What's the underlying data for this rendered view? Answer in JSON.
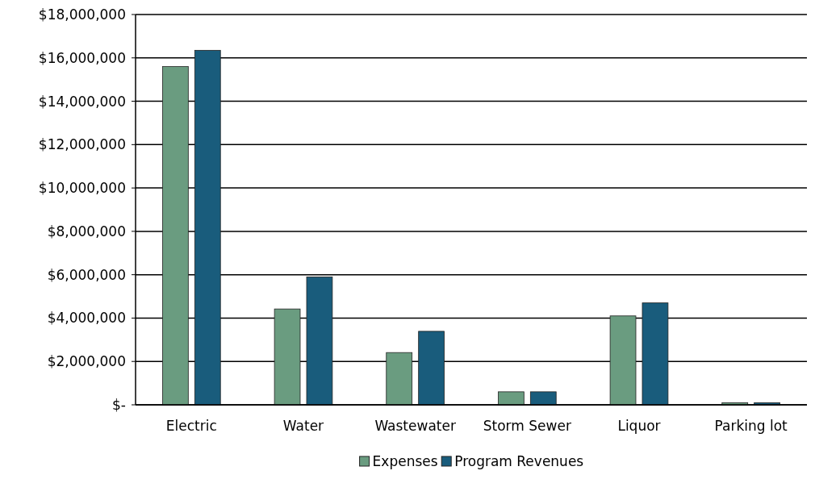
{
  "chart_data": {
    "type": "bar",
    "categories": [
      "Electric",
      "Water",
      "Wastewater",
      "Storm Sewer",
      "Liquor",
      "Parking lot"
    ],
    "series": [
      {
        "name": "Expenses",
        "color": "#6a9c80",
        "values": [
          15600000,
          4420000,
          2410000,
          600000,
          4100000,
          100000
        ]
      },
      {
        "name": "Program Revenues",
        "color": "#195c7c",
        "values": [
          16350000,
          5900000,
          3390000,
          600000,
          4700000,
          100000
        ]
      }
    ],
    "ylim": [
      0,
      18000000
    ],
    "yticks": [
      {
        "value": 0,
        "label": "$-"
      },
      {
        "value": 2000000,
        "label": "$2,000,000"
      },
      {
        "value": 4000000,
        "label": "$4,000,000"
      },
      {
        "value": 6000000,
        "label": "$6,000,000"
      },
      {
        "value": 8000000,
        "label": "$8,000,000"
      },
      {
        "value": 10000000,
        "label": "$10,000,000"
      },
      {
        "value": 12000000,
        "label": "$12,000,000"
      },
      {
        "value": 14000000,
        "label": "$14,000,000"
      },
      {
        "value": 16000000,
        "label": "$16,000,000"
      },
      {
        "value": 18000000,
        "label": "$18,000,000"
      }
    ],
    "grid": "y",
    "legend": "bottom"
  }
}
